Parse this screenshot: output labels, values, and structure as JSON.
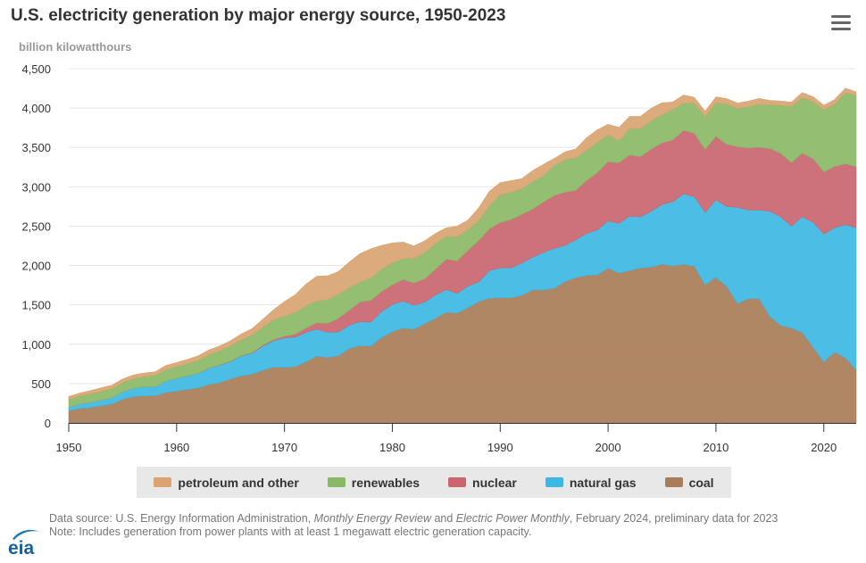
{
  "chart_data": {
    "type": "area",
    "stacked": true,
    "title": "U.S. electricity generation by major energy source, 1950-2023",
    "ylabel": "billion kilowatthours",
    "xlabel": "",
    "xlim": [
      1950,
      2023
    ],
    "ylim": [
      0,
      4500
    ],
    "x_ticks": [
      1950,
      1960,
      1970,
      1980,
      1990,
      2000,
      2010,
      2020
    ],
    "y_ticks": [
      0,
      500,
      1000,
      1500,
      2000,
      2500,
      3000,
      3500,
      4000,
      4500
    ],
    "grid": "horizontal",
    "legend_position": "bottom",
    "years": [
      1950,
      1951,
      1952,
      1953,
      1954,
      1955,
      1956,
      1957,
      1958,
      1959,
      1960,
      1961,
      1962,
      1963,
      1964,
      1965,
      1966,
      1967,
      1968,
      1969,
      1970,
      1971,
      1972,
      1973,
      1974,
      1975,
      1976,
      1977,
      1978,
      1979,
      1980,
      1981,
      1982,
      1983,
      1984,
      1985,
      1986,
      1987,
      1988,
      1989,
      1990,
      1991,
      1992,
      1993,
      1994,
      1995,
      1996,
      1997,
      1998,
      1999,
      2000,
      2001,
      2002,
      2003,
      2004,
      2005,
      2006,
      2007,
      2008,
      2009,
      2010,
      2011,
      2012,
      2013,
      2014,
      2015,
      2016,
      2017,
      2018,
      2019,
      2020,
      2021,
      2022,
      2023
    ],
    "series": [
      {
        "name": "coal",
        "color": "#a97d57",
        "values": [
          155,
          185,
          195,
          220,
          240,
          300,
          335,
          345,
          345,
          385,
          405,
          425,
          445,
          490,
          510,
          560,
          600,
          620,
          670,
          710,
          705,
          715,
          775,
          850,
          830,
          855,
          945,
          980,
          975,
          1085,
          1160,
          1205,
          1190,
          1260,
          1330,
          1405,
          1395,
          1465,
          1540,
          1585,
          1590,
          1590,
          1620,
          1690,
          1690,
          1710,
          1795,
          1845,
          1875,
          1880,
          1965,
          1905,
          1935,
          1970,
          1980,
          2015,
          1995,
          2015,
          1990,
          1755,
          1850,
          1735,
          1515,
          1580,
          1580,
          1355,
          1240,
          1205,
          1150,
          965,
          775,
          900,
          830,
          675
        ]
      },
      {
        "name": "natural gas",
        "color": "#3db8e4",
        "values": [
          45,
          55,
          65,
          70,
          80,
          95,
          105,
          115,
          115,
          145,
          160,
          170,
          185,
          205,
          225,
          220,
          250,
          265,
          305,
          335,
          375,
          375,
          375,
          340,
          320,
          300,
          295,
          305,
          305,
          330,
          345,
          345,
          305,
          275,
          295,
          290,
          250,
          270,
          250,
          350,
          380,
          380,
          410,
          415,
          475,
          505,
          460,
          480,
          530,
          570,
          600,
          630,
          690,
          650,
          710,
          760,
          815,
          895,
          885,
          920,
          985,
          1015,
          1225,
          1125,
          1125,
          1335,
          1380,
          1295,
          1470,
          1585,
          1625,
          1580,
          1690,
          1805
        ]
      },
      {
        "name": "nuclear",
        "color": "#c96670",
        "values": [
          0,
          0,
          0,
          0,
          0,
          0,
          0,
          0,
          0,
          0,
          1,
          2,
          2,
          3,
          3,
          4,
          6,
          8,
          13,
          14,
          22,
          38,
          54,
          83,
          114,
          173,
          191,
          251,
          276,
          255,
          251,
          273,
          283,
          294,
          328,
          384,
          414,
          455,
          527,
          529,
          577,
          613,
          619,
          610,
          640,
          673,
          675,
          629,
          674,
          728,
          754,
          769,
          780,
          764,
          789,
          782,
          787,
          806,
          806,
          799,
          807,
          790,
          769,
          789,
          797,
          797,
          805,
          805,
          807,
          809,
          790,
          778,
          772,
          775
        ]
      },
      {
        "name": "renewables",
        "color": "#8bb865",
        "values": [
          100,
          105,
          110,
          110,
          115,
          118,
          125,
          130,
          145,
          145,
          150,
          155,
          165,
          170,
          180,
          195,
          200,
          225,
          230,
          255,
          255,
          275,
          285,
          275,
          305,
          305,
          290,
          255,
          285,
          285,
          280,
          265,
          315,
          335,
          325,
          295,
          305,
          265,
          255,
          295,
          355,
          350,
          325,
          350,
          335,
          380,
          415,
          415,
          385,
          385,
          345,
          280,
          335,
          355,
          360,
          360,
          385,
          350,
          380,
          420,
          425,
          515,
          485,
          525,
          545,
          555,
          610,
          715,
          705,
          725,
          790,
          790,
          905,
          905
        ]
      },
      {
        "name": "petroleum and other",
        "color": "#d9a471",
        "values": [
          35,
          35,
          40,
          45,
          45,
          45,
          45,
          45,
          45,
          55,
          50,
          55,
          55,
          60,
          60,
          65,
          75,
          80,
          100,
          125,
          185,
          225,
          275,
          315,
          300,
          290,
          320,
          360,
          370,
          300,
          250,
          210,
          155,
          150,
          130,
          105,
          135,
          120,
          160,
          185,
          150,
          145,
          130,
          140,
          145,
          90,
          100,
          110,
          160,
          160,
          130,
          170,
          155,
          155,
          160,
          150,
          95,
          100,
          75,
          65,
          75,
          65,
          70,
          70,
          75,
          55,
          55,
          55,
          65,
          60,
          55,
          60,
          55,
          45
        ]
      }
    ]
  },
  "chart_title": "U.S. electricity generation by major energy source, 1950-2023",
  "y_unit_label": "billion kilowatthours",
  "menu_icon": "hamburger-menu-icon",
  "legend": [
    {
      "label": "petroleum and other",
      "color": "#d9a471"
    },
    {
      "label": "renewables",
      "color": "#8bb865"
    },
    {
      "label": "nuclear",
      "color": "#c96670"
    },
    {
      "label": "natural gas",
      "color": "#3db8e4"
    },
    {
      "label": "coal",
      "color": "#a97d57"
    }
  ],
  "logo_text": "eia",
  "source": {
    "prefix": "Data source: U.S. Energy Information Administration, ",
    "pub1": "Monthly Energy Review",
    "and": " and ",
    "pub2": "Electric Power Monthly",
    "suffix": ", February 2024, preliminary data for 2023",
    "note": "Note: Includes generation from power plants with at least 1 megawatt electric generation capacity."
  }
}
